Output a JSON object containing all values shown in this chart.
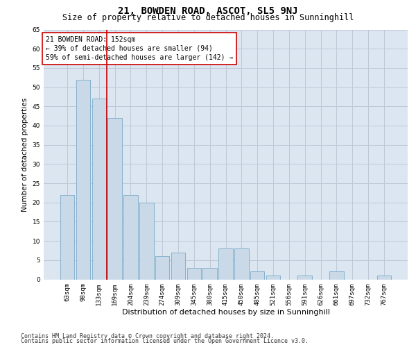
{
  "title": "21, BOWDEN ROAD, ASCOT, SL5 9NJ",
  "subtitle": "Size of property relative to detached houses in Sunninghill",
  "xlabel": "Distribution of detached houses by size in Sunninghill",
  "ylabel": "Number of detached properties",
  "categories": [
    "63sqm",
    "98sqm",
    "133sqm",
    "169sqm",
    "204sqm",
    "239sqm",
    "274sqm",
    "309sqm",
    "345sqm",
    "380sqm",
    "415sqm",
    "450sqm",
    "485sqm",
    "521sqm",
    "556sqm",
    "591sqm",
    "626sqm",
    "661sqm",
    "697sqm",
    "732sqm",
    "767sqm"
  ],
  "values": [
    22,
    52,
    47,
    42,
    22,
    20,
    6,
    7,
    3,
    3,
    8,
    8,
    2,
    1,
    0,
    1,
    0,
    2,
    0,
    0,
    1
  ],
  "bar_color": "#c9d9e8",
  "bar_edge_color": "#7aaac8",
  "grid_color": "#c0c8d8",
  "background_color": "#dce6f0",
  "vline_x": 2.5,
  "vline_color": "#cc0000",
  "annotation_text": "21 BOWDEN ROAD: 152sqm\n← 39% of detached houses are smaller (94)\n59% of semi-detached houses are larger (142) →",
  "annotation_box_color": "#ffffff",
  "annotation_box_edge": "#cc0000",
  "ylim": [
    0,
    65
  ],
  "yticks": [
    0,
    5,
    10,
    15,
    20,
    25,
    30,
    35,
    40,
    45,
    50,
    55,
    60,
    65
  ],
  "footer1": "Contains HM Land Registry data © Crown copyright and database right 2024.",
  "footer2": "Contains public sector information licensed under the Open Government Licence v3.0.",
  "title_fontsize": 10,
  "subtitle_fontsize": 8.5,
  "xlabel_fontsize": 8,
  "ylabel_fontsize": 7.5,
  "tick_fontsize": 6.5,
  "footer_fontsize": 6,
  "ann_fontsize": 7
}
